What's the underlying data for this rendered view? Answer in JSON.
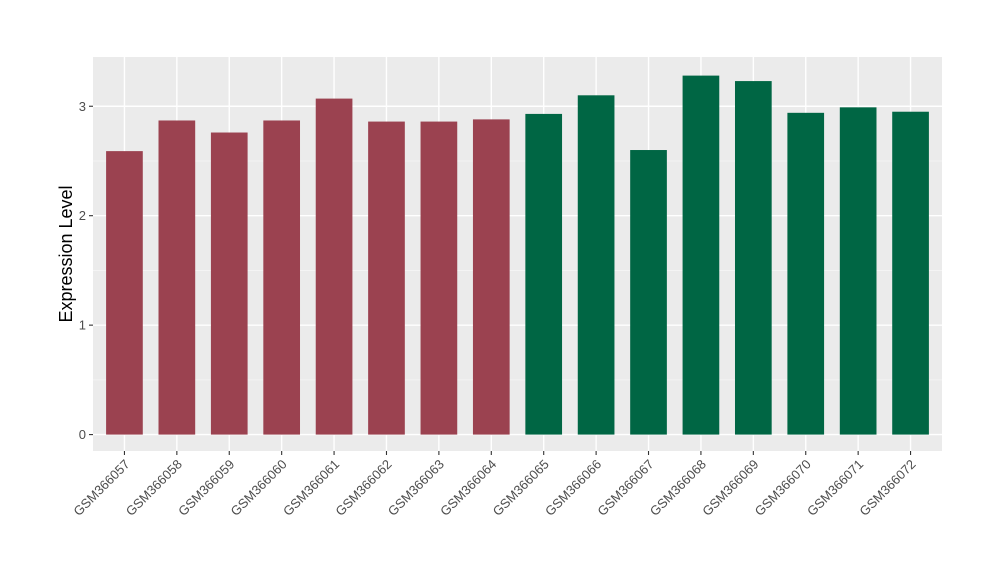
{
  "chart_data": {
    "type": "bar",
    "title": "",
    "xlabel": "",
    "ylabel": "Expression Level",
    "ylim": [
      -0.15,
      3.45
    ],
    "yticks": [
      0,
      1,
      2,
      3
    ],
    "grid": true,
    "legend": "none",
    "categories": [
      "GSM366057",
      "GSM366058",
      "GSM366059",
      "GSM366060",
      "GSM366061",
      "GSM366062",
      "GSM366063",
      "GSM366064",
      "GSM366065",
      "GSM366066",
      "GSM366067",
      "GSM366068",
      "GSM366069",
      "GSM366070",
      "GSM366071",
      "GSM366072"
    ],
    "values": [
      2.59,
      2.87,
      2.76,
      2.87,
      3.07,
      2.86,
      2.86,
      2.88,
      2.93,
      3.1,
      2.6,
      3.28,
      3.23,
      2.94,
      2.99,
      2.95
    ],
    "bar_colors": [
      "#9b4250",
      "#9b4250",
      "#9b4250",
      "#9b4250",
      "#9b4250",
      "#9b4250",
      "#9b4250",
      "#9b4250",
      "#006644",
      "#006644",
      "#006644",
      "#006644",
      "#006644",
      "#006644",
      "#006644",
      "#006644"
    ]
  }
}
